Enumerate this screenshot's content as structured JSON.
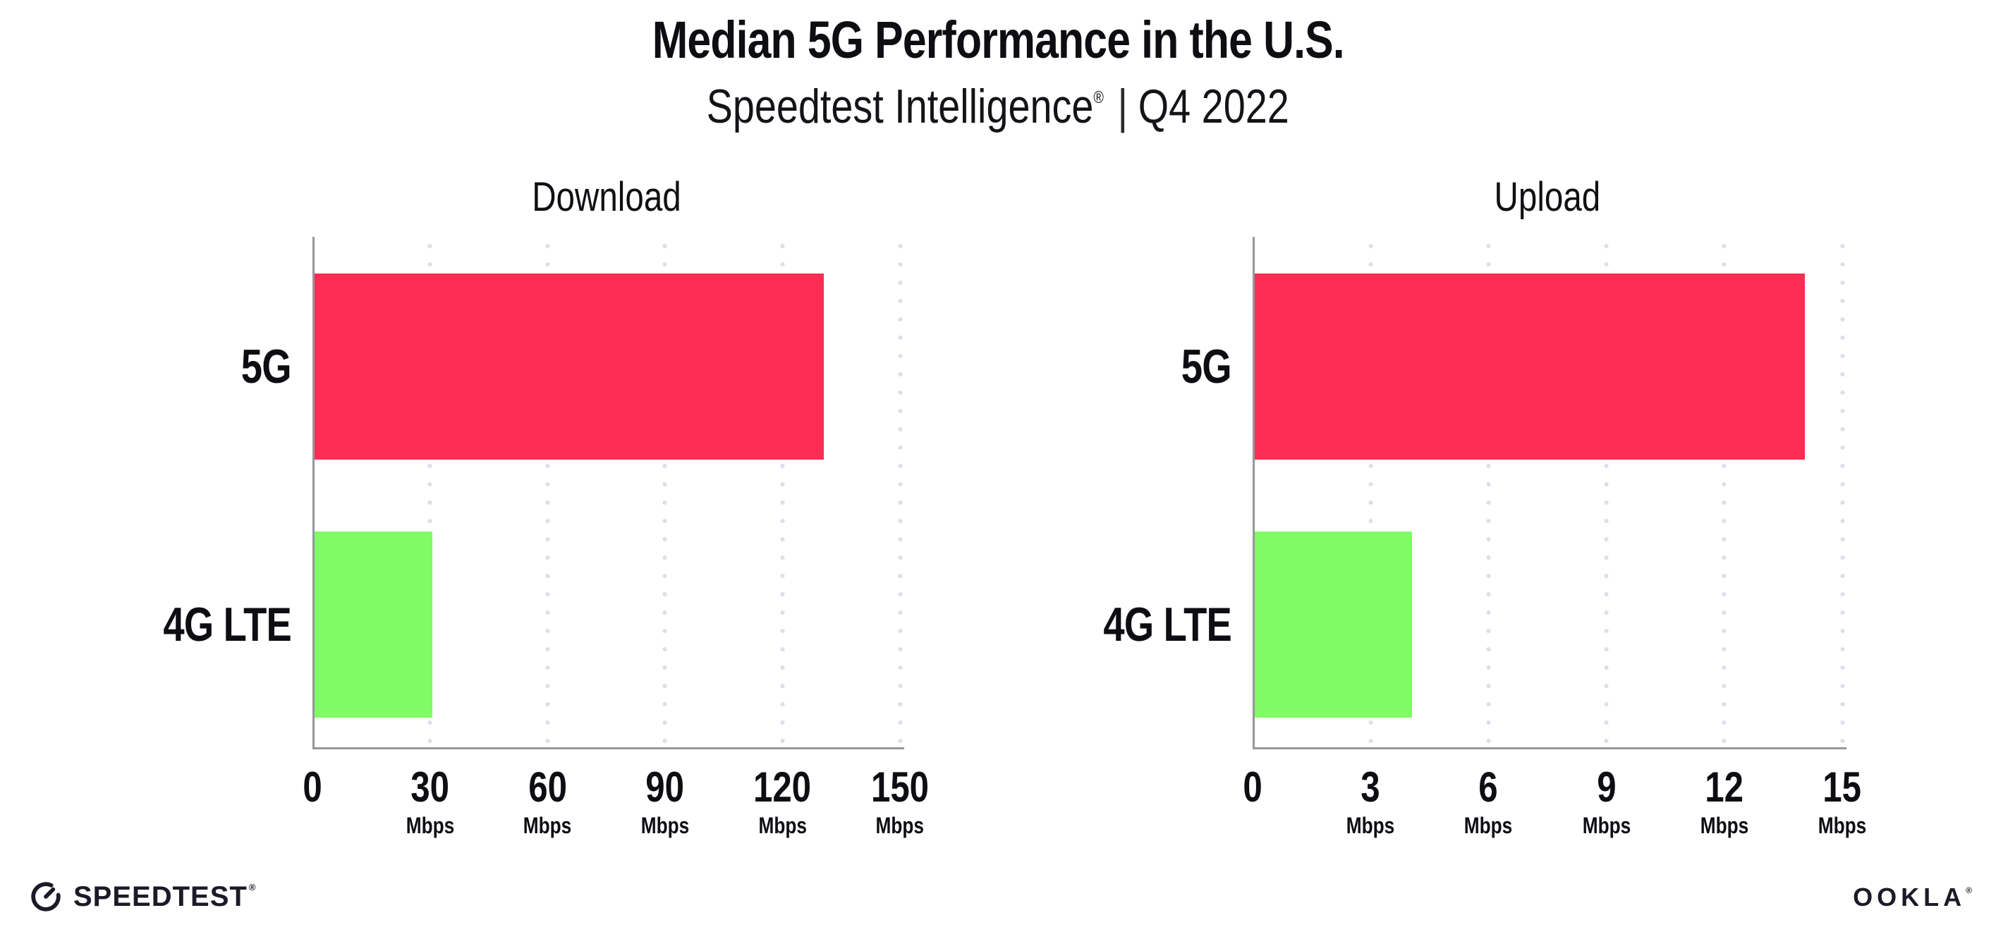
{
  "title": "Median 5G Performance in the U.S.",
  "subtitle": {
    "brand": "Speedtest Intelligence",
    "registered_mark": "®",
    "separator": "|",
    "period": "Q4 2022"
  },
  "chart_data": [
    {
      "type": "bar",
      "orientation": "horizontal",
      "title": "Download",
      "categories": [
        "5G",
        "4G LTE"
      ],
      "values": [
        130,
        30
      ],
      "value_unit": "Mbps",
      "xlim": [
        0,
        150
      ],
      "xticks": [
        0,
        30,
        60,
        90,
        120,
        150
      ],
      "tick_unit_label": "Mbps",
      "grid": "vertical-dotted",
      "legend": "none",
      "bar_colors": [
        "#FC2D55",
        "#80FA65"
      ]
    },
    {
      "type": "bar",
      "orientation": "horizontal",
      "title": "Upload",
      "categories": [
        "5G",
        "4G LTE"
      ],
      "values": [
        14,
        4
      ],
      "value_unit": "Mbps",
      "xlim": [
        0,
        15
      ],
      "xticks": [
        0,
        3,
        6,
        9,
        12,
        15
      ],
      "tick_unit_label": "Mbps",
      "grid": "vertical-dotted",
      "legend": "none",
      "bar_colors": [
        "#FC2D55",
        "#80FA65"
      ]
    }
  ],
  "footer": {
    "speedtest_label": "SPEEDTEST",
    "speedtest_mark": "®",
    "ookla_label": "OOKLA",
    "ookla_mark": "®"
  },
  "colors": {
    "bar_5g": "#FC2D55",
    "bar_4g_lte": "#80FA65",
    "grid_dots": "#DEDEEA",
    "axis": "#96969B",
    "text": "#0D0D12",
    "logo": "#1B1B28"
  }
}
